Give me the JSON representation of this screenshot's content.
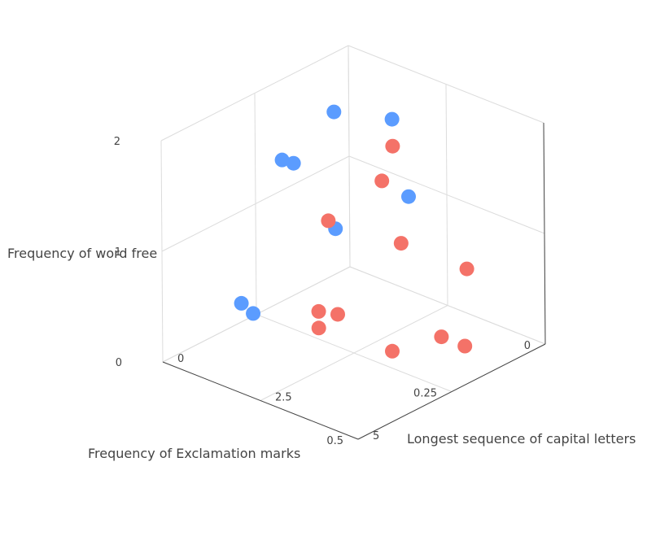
{
  "chart_data": {
    "type": "scatter",
    "title": "",
    "axes": {
      "x": {
        "title": "Frequency of Exclamation marks",
        "ticks": [
          "0",
          "0.25",
          "0.5"
        ]
      },
      "y": {
        "title": "Longest sequence of capital letters",
        "ticks": [
          "0",
          "2.5",
          "5"
        ]
      },
      "z": {
        "title": "Frequency of word free",
        "ticks": [
          "0",
          "1",
          "2"
        ]
      }
    },
    "grid": true,
    "legend": "none",
    "series": [
      {
        "color": "#5b9cff",
        "points": [
          {
            "x": 0.05,
            "y": 0.1,
            "z": 1.5
          },
          {
            "x": 0.22,
            "y": 0.4,
            "z": 1.4
          },
          {
            "x": 0.2,
            "y": 0.5,
            "z": 1.35
          },
          {
            "x": 0.02,
            "y": 1.3,
            "z": 1.55
          },
          {
            "x": 0.05,
            "y": 2.0,
            "z": 1.0
          },
          {
            "x": 0.1,
            "y": 0.6,
            "z": 0.6
          },
          {
            "x": 0.3,
            "y": 0.4,
            "z": 0.15
          },
          {
            "x": 0.3,
            "y": 0.1,
            "z": 0.2
          }
        ]
      },
      {
        "color": "#f47268",
        "points": [
          {
            "x": 0.05,
            "y": 1.6,
            "z": 1.4
          },
          {
            "x": 0.1,
            "y": 1.8,
            "z": 1.2
          },
          {
            "x": 0.15,
            "y": 0.9,
            "z": 0.8
          },
          {
            "x": 0.05,
            "y": 1.8,
            "z": 0.55
          },
          {
            "x": 0.0,
            "y": 3.0,
            "z": 0.4
          },
          {
            "x": 0.25,
            "y": 1.6,
            "z": 0.25
          },
          {
            "x": 0.22,
            "y": 1.8,
            "z": 0.2
          },
          {
            "x": 0.25,
            "y": 1.6,
            "z": 0.1
          },
          {
            "x": 0.1,
            "y": 3.3,
            "z": 0.0
          },
          {
            "x": 0.1,
            "y": 3.9,
            "z": 0.0
          },
          {
            "x": 0.2,
            "y": 3.0,
            "z": 0.0
          }
        ]
      }
    ]
  }
}
